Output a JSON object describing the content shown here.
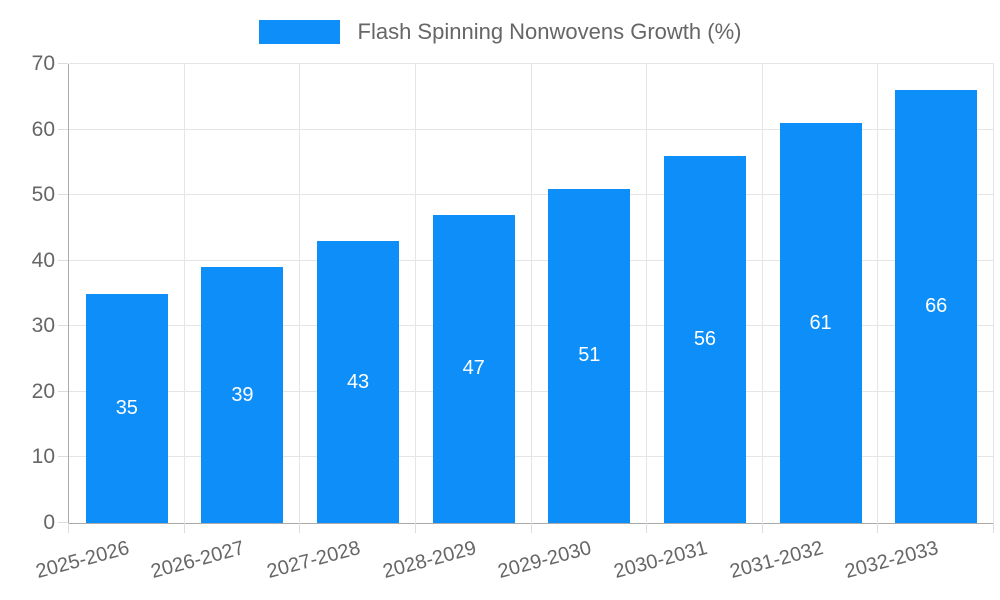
{
  "legend": {
    "label": "Flash Spinning Nonwovens Growth (%)"
  },
  "chart_data": {
    "type": "bar",
    "title": "Flash Spinning Nonwovens Growth (%)",
    "categories": [
      "2025-2026",
      "2026-2027",
      "2027-2028",
      "2028-2029",
      "2029-2030",
      "2030-2031",
      "2031-2032",
      "2032-2033"
    ],
    "values": [
      35,
      39,
      43,
      47,
      51,
      56,
      61,
      66
    ],
    "value_labels": [
      "35",
      "39",
      "43",
      "47",
      "51",
      "56",
      "61",
      "66"
    ],
    "xlabel": "",
    "ylabel": "",
    "ylim": [
      0,
      70
    ],
    "ytick_step": 10,
    "ytick_labels": [
      "0",
      "10",
      "20",
      "30",
      "40",
      "50",
      "60",
      "70"
    ],
    "grid": true,
    "legend_position": "top",
    "x_label_rotation_deg": -15,
    "colors": {
      "bar": "#0d8ef8",
      "value_label": "#ffffff",
      "axis_text": "#666666",
      "grid_line": "#e5e5e5",
      "tick_mark": "#dcdcdc",
      "axis_line": "#aaaaaa",
      "background": "#ffffff"
    }
  }
}
